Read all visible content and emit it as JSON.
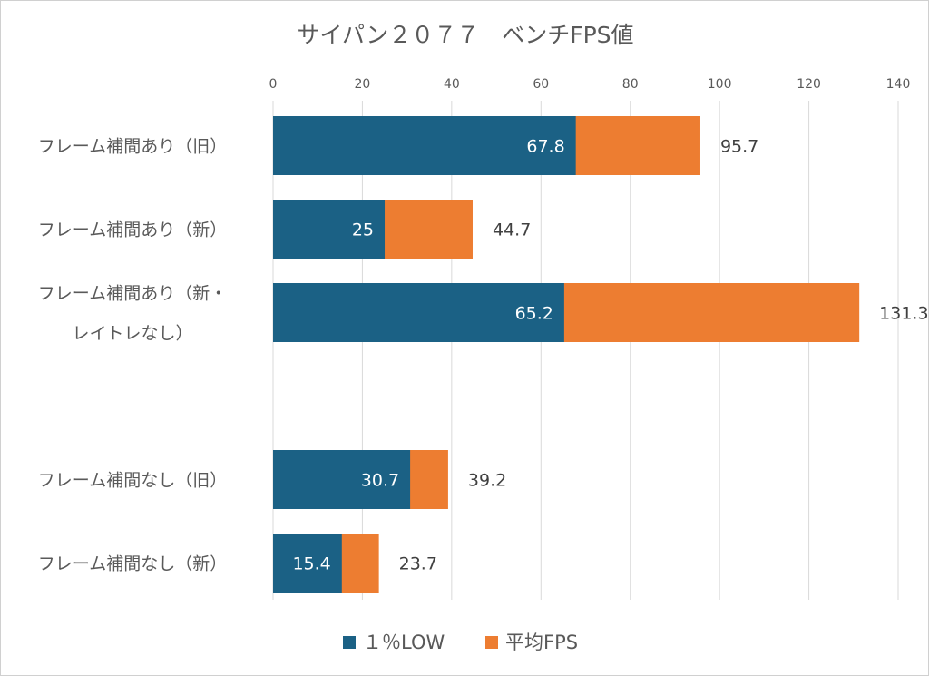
{
  "chart_data": {
    "type": "bar",
    "orientation": "horizontal",
    "stacked": false,
    "title": "サイパン２０７７　ベンチFPS値",
    "categories": [
      [
        "フレーム補間あり（旧）"
      ],
      [
        "フレーム補間あり（新）"
      ],
      [
        "フレーム補間あり（新・",
        "レイトレなし）"
      ],
      [],
      [
        "フレーム補間なし（旧）"
      ],
      [
        "フレーム補間なし（新）"
      ]
    ],
    "series": [
      {
        "name": "平均FPS",
        "color": "#ED7D31",
        "values": [
          95.7,
          44.7,
          131.3,
          null,
          39.2,
          23.7
        ]
      },
      {
        "name": "１％LOW",
        "color": "#1B6185",
        "values": [
          67.8,
          25,
          65.2,
          null,
          30.7,
          15.4
        ]
      }
    ],
    "data_labels": {
      "平均FPS": [
        "95.7",
        "44.7",
        "131.3",
        "",
        "39.2",
        "23.7"
      ],
      "１％LOW": [
        "67.8",
        "25",
        "65.2",
        "",
        "30.7",
        "15.4"
      ]
    },
    "xlim": [
      0,
      140
    ],
    "xticks": [
      0,
      20,
      40,
      60,
      80,
      100,
      120,
      140
    ],
    "x_axis_position": "top",
    "grid": true,
    "legend": {
      "position": "bottom",
      "entries": [
        "１％LOW",
        "平均FPS"
      ]
    }
  }
}
